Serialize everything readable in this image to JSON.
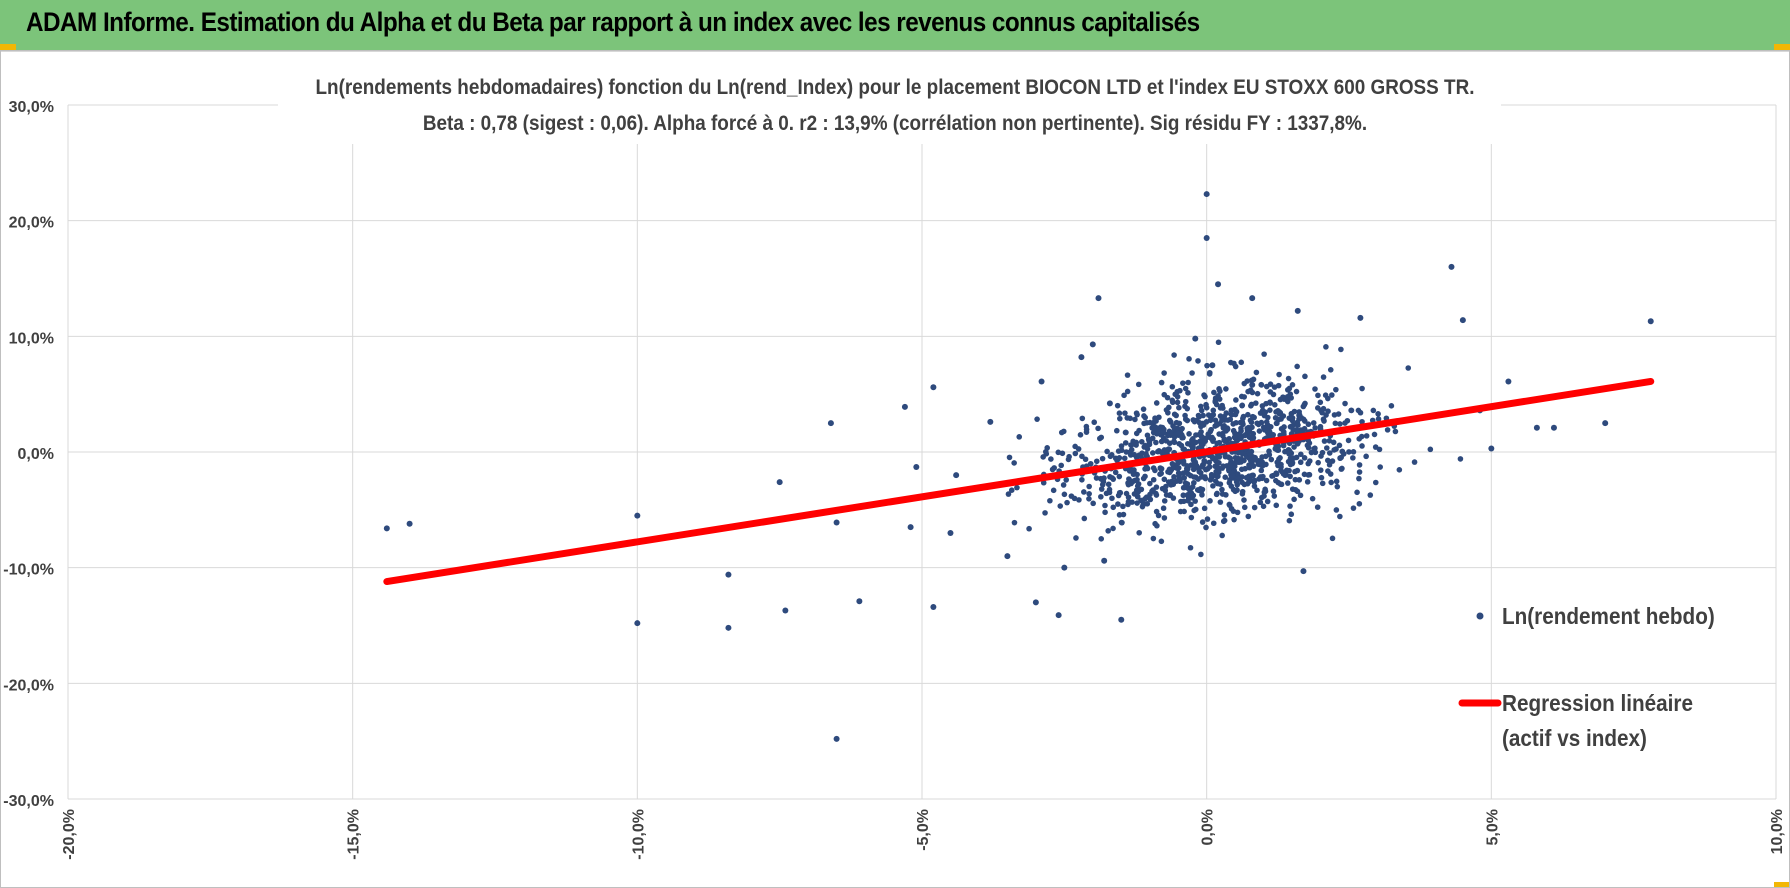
{
  "header": {
    "title": "ADAM Informe. Estimation du Alpha et du Beta par rapport à un index avec les revenus connus capitalisés"
  },
  "colors": {
    "header_bg": "#7cc47a",
    "points": "#2e4a7d",
    "regression": "#ff0000",
    "grid": "#d9d9d9",
    "corner_accent": "#f2b705"
  },
  "chart_data": {
    "type": "scatter",
    "title": "Ln(rendements hebdomadaires) fonction du Ln(rend_Index) pour le placement BIOCON LTD et l'index EU STOXX 600 GROSS TR.",
    "subtitle": "Beta : 0,78 (sigest : 0,06).  Alpha forcé à 0. r2 : 13,9% (corrélation non pertinente). Sig résidu FY : 1337,8%.",
    "xlabel": "",
    "ylabel": "",
    "xlim": [
      -20,
      10
    ],
    "ylim": [
      -30,
      30
    ],
    "x_ticks": [
      "-20,0%",
      "-15,0%",
      "-10,0%",
      "-5,0%",
      "0,0%",
      "5,0%",
      "10,0%"
    ],
    "y_ticks": [
      "30,0%",
      "20,0%",
      "10,0%",
      "0,0%",
      "-10,0%",
      "-20,0%",
      "-30,0%"
    ],
    "grid": true,
    "legend_position": "right",
    "series": [
      {
        "name": "Ln(rendement hebdo)",
        "kind": "points",
        "x": [
          -14.4,
          -14.0,
          -10.0,
          -10.0,
          -8.4,
          -8.4,
          -7.5,
          -7.4,
          -6.6,
          -6.5,
          -6.5,
          -6.1,
          -5.3,
          -5.2,
          -5.1,
          -4.8,
          -4.8,
          -4.5,
          -4.4,
          -3.8,
          -3.5,
          -3.0,
          -2.9,
          -2.6,
          -2.5,
          -2.2,
          -2.0,
          -1.9,
          -1.8,
          -1.7,
          -1.5,
          -0.2,
          0.0,
          0.0,
          0.1,
          0.2,
          0.8,
          0.8,
          1.6,
          1.7,
          2.7,
          4.3,
          4.5,
          4.8,
          5.0,
          5.3,
          5.8,
          6.1,
          7.0,
          7.8
        ],
        "y": [
          -6.6,
          -6.2,
          -14.8,
          -5.5,
          -10.6,
          -15.2,
          -2.6,
          -13.7,
          2.5,
          -24.8,
          -6.1,
          -12.9,
          3.9,
          -6.5,
          -1.3,
          5.6,
          -13.4,
          -7.0,
          -2.0,
          2.6,
          -9.0,
          -13.0,
          6.1,
          -14.1,
          -10.0,
          8.2,
          9.3,
          13.3,
          -9.4,
          4.2,
          -14.5,
          9.8,
          22.3,
          18.5,
          7.5,
          14.5,
          13.3,
          5.8,
          12.2,
          -10.3,
          11.6,
          16.0,
          11.4,
          3.6,
          0.3,
          6.1,
          2.1,
          2.1,
          2.5,
          11.3
        ]
      },
      {
        "name": "Regression linéaire (actif vs index)",
        "kind": "line",
        "x": [
          -14.4,
          7.8
        ],
        "y": [
          -11.2,
          6.1
        ]
      }
    ],
    "legend": [
      {
        "label": "Ln(rendement hebdo)"
      },
      {
        "label": "Regression linéaire",
        "label2": "(actif vs index)"
      }
    ]
  }
}
